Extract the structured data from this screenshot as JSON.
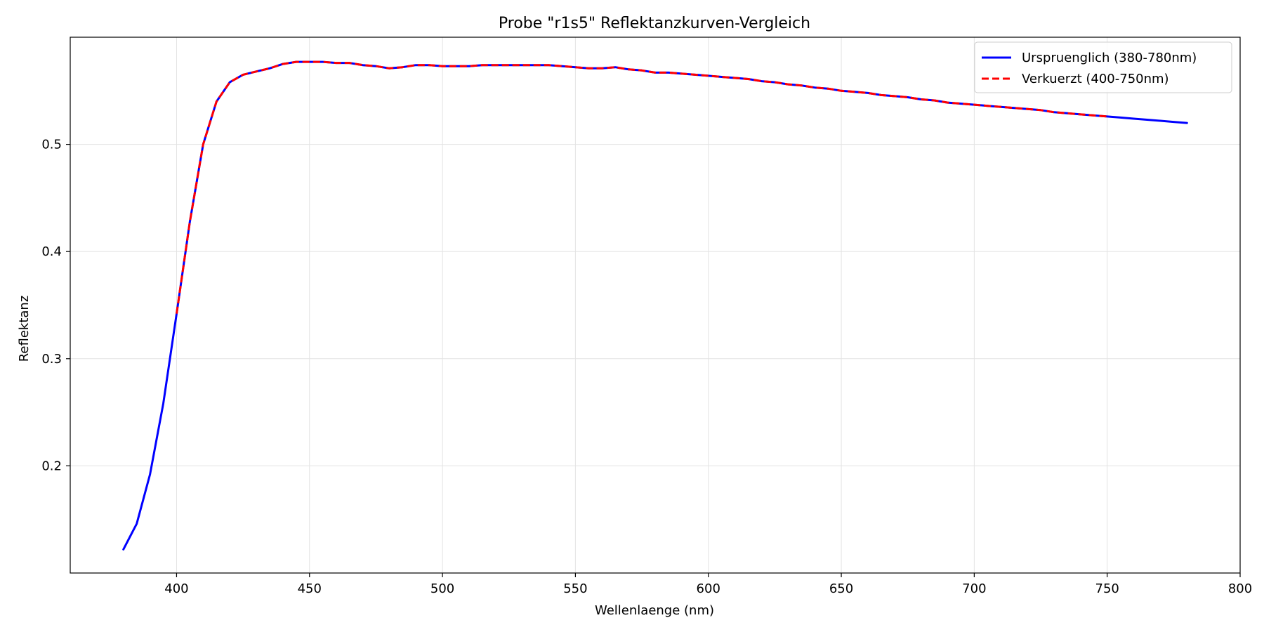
{
  "chart_data": {
    "type": "line",
    "title": "Probe \"r1s5\" Reflektanzkurven-Vergleich",
    "xlabel": "Wellenlaenge (nm)",
    "ylabel": "Reflektanz",
    "xlim": [
      360,
      800
    ],
    "ylim": [
      0.1,
      0.6
    ],
    "xticks": [
      400,
      450,
      500,
      550,
      600,
      650,
      700,
      750,
      800
    ],
    "yticks": [
      0.2,
      0.3,
      0.4,
      0.5
    ],
    "grid": true,
    "legend_position": "top-right",
    "series": [
      {
        "name": "Urspruenglich (380-780nm)",
        "color": "#0000ff",
        "style": "solid",
        "x": [
          380,
          385,
          390,
          395,
          400,
          405,
          410,
          415,
          420,
          425,
          430,
          435,
          440,
          445,
          450,
          455,
          460,
          465,
          470,
          475,
          480,
          485,
          490,
          495,
          500,
          505,
          510,
          515,
          520,
          525,
          530,
          535,
          540,
          545,
          550,
          555,
          560,
          565,
          570,
          575,
          580,
          585,
          590,
          595,
          600,
          605,
          610,
          615,
          620,
          625,
          630,
          635,
          640,
          645,
          650,
          655,
          660,
          665,
          670,
          675,
          680,
          685,
          690,
          695,
          700,
          705,
          710,
          715,
          720,
          725,
          730,
          735,
          740,
          745,
          750,
          755,
          760,
          765,
          770,
          775,
          780
        ],
        "y": [
          0.122,
          0.146,
          0.192,
          0.258,
          0.342,
          0.428,
          0.5,
          0.54,
          0.558,
          0.565,
          0.568,
          0.571,
          0.575,
          0.577,
          0.577,
          0.577,
          0.576,
          0.576,
          0.574,
          0.573,
          0.571,
          0.572,
          0.574,
          0.574,
          0.573,
          0.573,
          0.573,
          0.574,
          0.574,
          0.574,
          0.574,
          0.574,
          0.574,
          0.573,
          0.572,
          0.571,
          0.571,
          0.572,
          0.57,
          0.569,
          0.567,
          0.567,
          0.566,
          0.565,
          0.564,
          0.563,
          0.562,
          0.561,
          0.559,
          0.558,
          0.556,
          0.555,
          0.553,
          0.552,
          0.55,
          0.549,
          0.548,
          0.546,
          0.545,
          0.544,
          0.542,
          0.541,
          0.539,
          0.538,
          0.537,
          0.536,
          0.535,
          0.534,
          0.533,
          0.532,
          0.53,
          0.529,
          0.528,
          0.527,
          0.526,
          0.525,
          0.524,
          0.523,
          0.522,
          0.521,
          0.52
        ]
      },
      {
        "name": "Verkuerzt (400-750nm)",
        "color": "#ff0000",
        "style": "dashed",
        "x": [
          400,
          405,
          410,
          415,
          420,
          425,
          430,
          435,
          440,
          445,
          450,
          455,
          460,
          465,
          470,
          475,
          480,
          485,
          490,
          495,
          500,
          505,
          510,
          515,
          520,
          525,
          530,
          535,
          540,
          545,
          550,
          555,
          560,
          565,
          570,
          575,
          580,
          585,
          590,
          595,
          600,
          605,
          610,
          615,
          620,
          625,
          630,
          635,
          640,
          645,
          650,
          655,
          660,
          665,
          670,
          675,
          680,
          685,
          690,
          695,
          700,
          705,
          710,
          715,
          720,
          725,
          730,
          735,
          740,
          745,
          750
        ],
        "y": [
          0.342,
          0.428,
          0.5,
          0.54,
          0.558,
          0.565,
          0.568,
          0.571,
          0.575,
          0.577,
          0.577,
          0.577,
          0.576,
          0.576,
          0.574,
          0.573,
          0.571,
          0.572,
          0.574,
          0.574,
          0.573,
          0.573,
          0.573,
          0.574,
          0.574,
          0.574,
          0.574,
          0.574,
          0.574,
          0.573,
          0.572,
          0.571,
          0.571,
          0.572,
          0.57,
          0.569,
          0.567,
          0.567,
          0.566,
          0.565,
          0.564,
          0.563,
          0.562,
          0.561,
          0.559,
          0.558,
          0.556,
          0.555,
          0.553,
          0.552,
          0.55,
          0.549,
          0.548,
          0.546,
          0.545,
          0.544,
          0.542,
          0.541,
          0.539,
          0.538,
          0.537,
          0.536,
          0.535,
          0.534,
          0.533,
          0.532,
          0.53,
          0.529,
          0.528,
          0.527,
          0.526
        ]
      }
    ]
  }
}
